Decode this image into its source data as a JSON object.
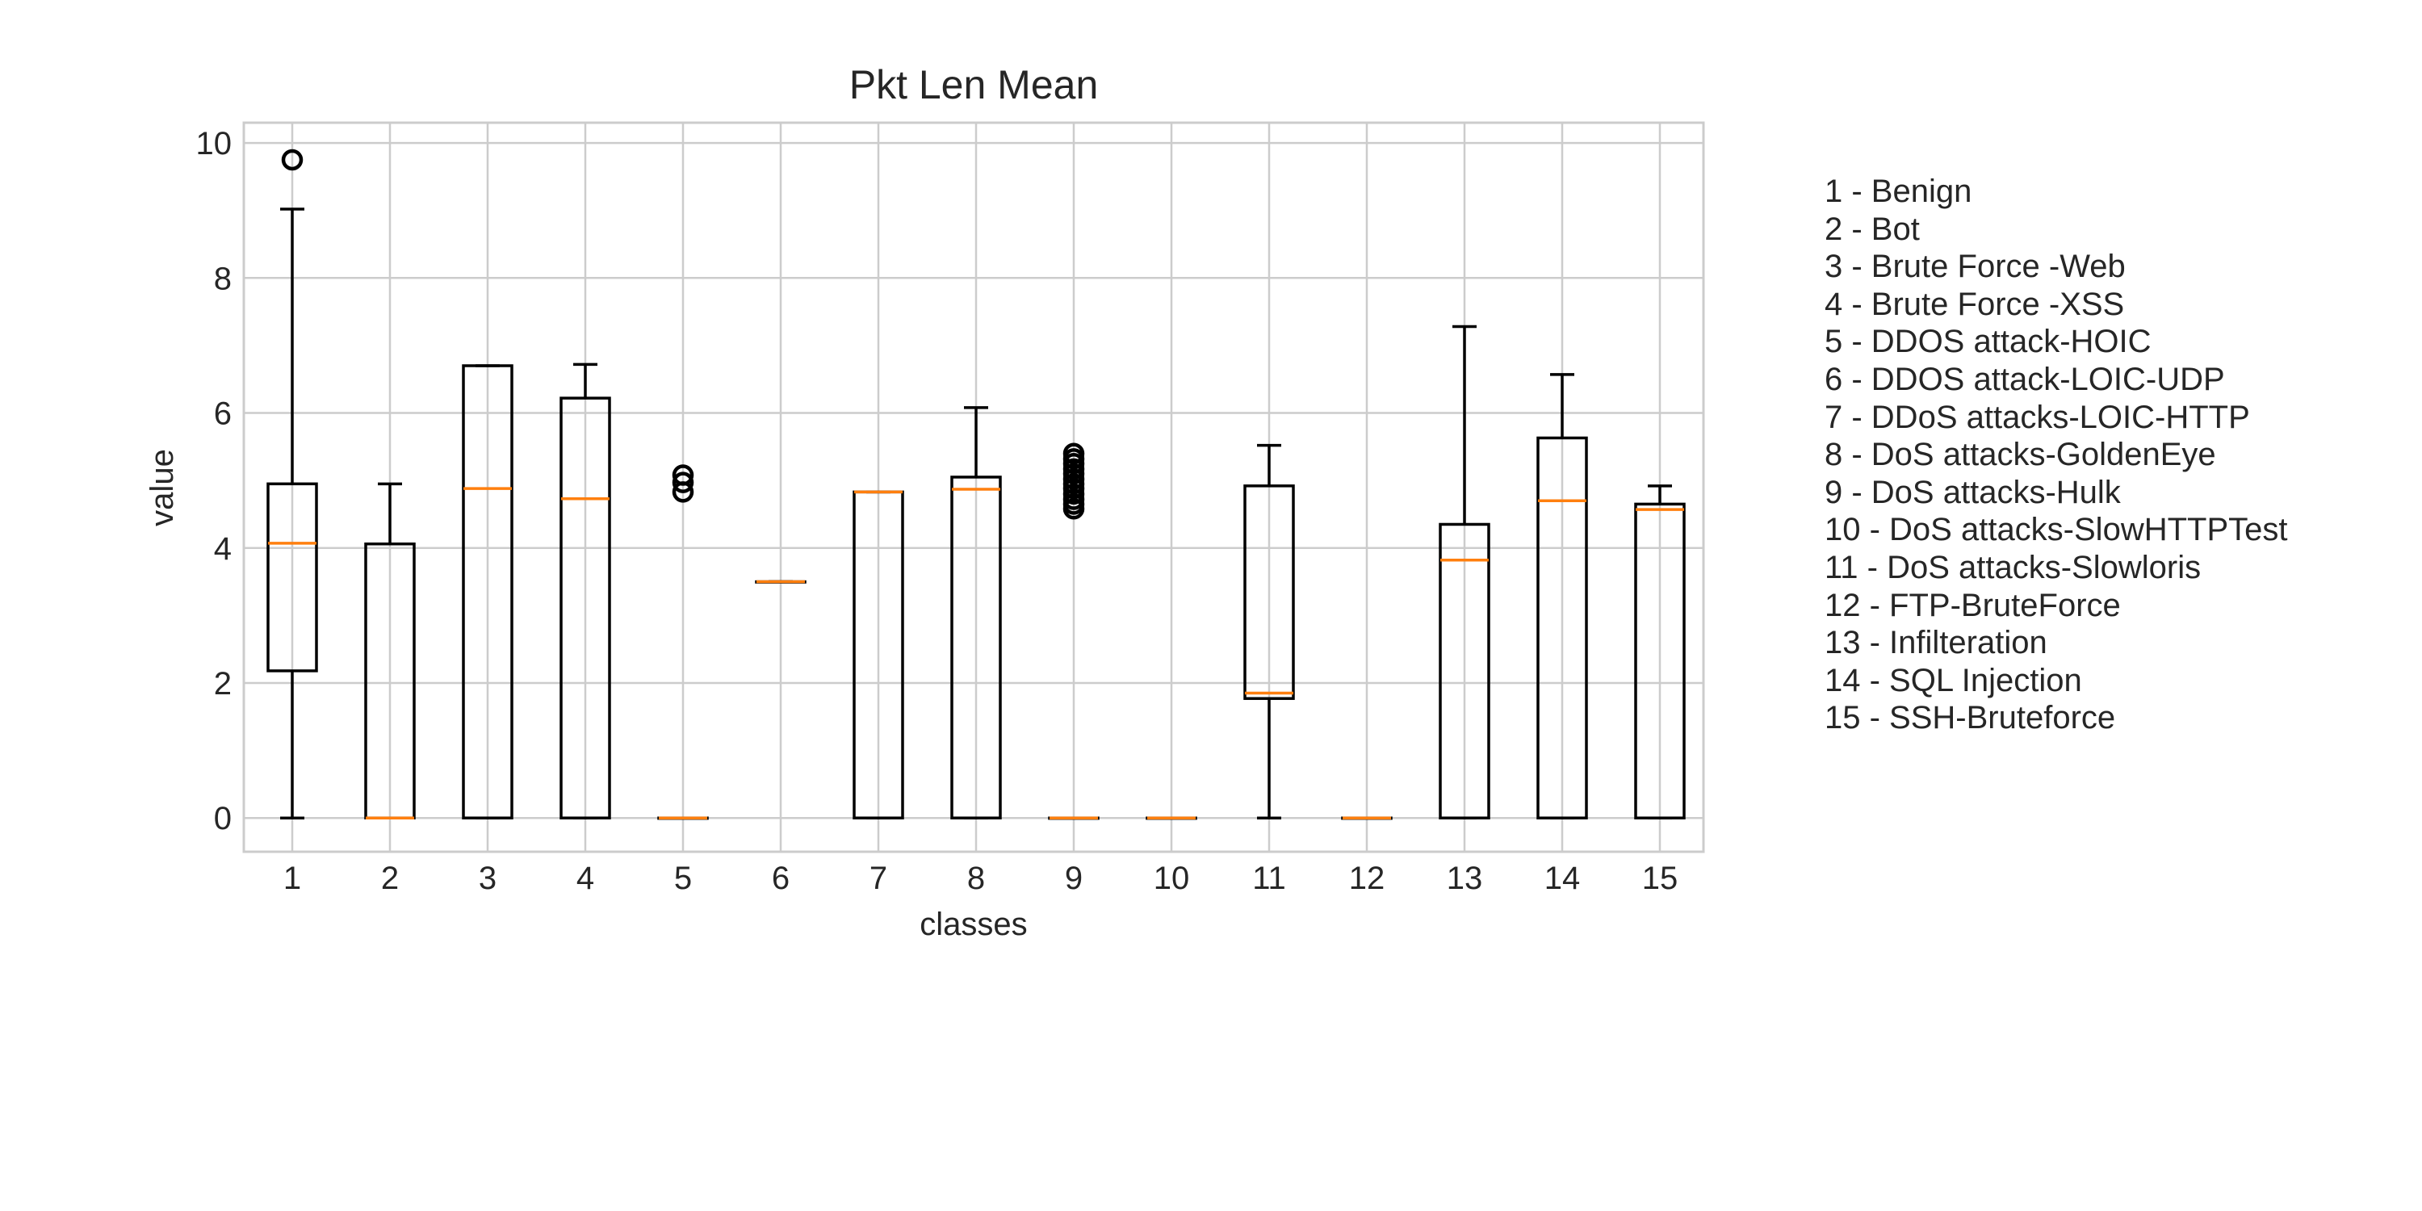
{
  "chart_data": {
    "type": "box",
    "title": "Pkt Len Mean",
    "xlabel": "classes",
    "ylabel": "value",
    "ylim": [
      -0.5,
      10.3
    ],
    "yticks": [
      0,
      2,
      4,
      6,
      8,
      10
    ],
    "grid": true,
    "categories": [
      "1",
      "2",
      "3",
      "4",
      "5",
      "6",
      "7",
      "8",
      "9",
      "10",
      "11",
      "12",
      "13",
      "14",
      "15"
    ],
    "boxes": [
      {
        "class": "1",
        "whisker_low": 0,
        "q1": 2.18,
        "median": 4.07,
        "q3": 4.95,
        "whisker_high": 9.02,
        "outliers": [
          9.75
        ]
      },
      {
        "class": "2",
        "whisker_low": 0,
        "q1": 0,
        "median": 0,
        "q3": 4.06,
        "whisker_high": 4.95,
        "outliers": []
      },
      {
        "class": "3",
        "whisker_low": 0,
        "q1": 0,
        "median": 4.88,
        "q3": 6.7,
        "whisker_high": 6.7,
        "outliers": []
      },
      {
        "class": "4",
        "whisker_low": 0,
        "q1": 0,
        "median": 4.73,
        "q3": 6.22,
        "whisker_high": 6.72,
        "outliers": []
      },
      {
        "class": "5",
        "whisker_low": 0,
        "q1": 0,
        "median": 0,
        "q3": 0,
        "whisker_high": 0,
        "outliers": [
          4.83,
          4.97,
          5.08
        ]
      },
      {
        "class": "6",
        "whisker_low": 3.5,
        "q1": 3.5,
        "median": 3.5,
        "q3": 3.5,
        "whisker_high": 3.5,
        "outliers": []
      },
      {
        "class": "7",
        "whisker_low": 0,
        "q1": 0,
        "median": 4.83,
        "q3": 4.83,
        "whisker_high": 4.83,
        "outliers": []
      },
      {
        "class": "8",
        "whisker_low": 0,
        "q1": 0,
        "median": 4.87,
        "q3": 5.05,
        "whisker_high": 6.08,
        "outliers": []
      },
      {
        "class": "9",
        "whisker_low": 0,
        "q1": 0,
        "median": 0,
        "q3": 0,
        "whisker_high": 0,
        "outliers": [
          4.58,
          4.65,
          4.72,
          4.8,
          4.88,
          4.95,
          5.02,
          5.1,
          5.17,
          5.25,
          5.32,
          5.4
        ]
      },
      {
        "class": "10",
        "whisker_low": 0,
        "q1": 0,
        "median": 0,
        "q3": 0,
        "whisker_high": 0,
        "outliers": []
      },
      {
        "class": "11",
        "whisker_low": 0,
        "q1": 1.77,
        "median": 1.85,
        "q3": 4.92,
        "whisker_high": 5.52,
        "outliers": []
      },
      {
        "class": "12",
        "whisker_low": 0,
        "q1": 0,
        "median": 0,
        "q3": 0,
        "whisker_high": 0,
        "outliers": []
      },
      {
        "class": "13",
        "whisker_low": 0,
        "q1": 0,
        "median": 3.82,
        "q3": 4.35,
        "whisker_high": 7.28,
        "outliers": []
      },
      {
        "class": "14",
        "whisker_low": 0,
        "q1": 0,
        "median": 4.7,
        "q3": 5.63,
        "whisker_high": 6.57,
        "outliers": []
      },
      {
        "class": "15",
        "whisker_low": 0,
        "q1": 0,
        "median": 4.57,
        "q3": 4.65,
        "whisker_high": 4.92,
        "outliers": []
      }
    ],
    "legend_position": "right",
    "legend": [
      "1 - Benign",
      "2 - Bot",
      "3 - Brute Force -Web",
      "4 - Brute Force -XSS",
      "5 - DDOS attack-HOIC",
      "6 - DDOS attack-LOIC-UDP",
      "7 - DDoS attacks-LOIC-HTTP",
      "8 - DoS attacks-GoldenEye",
      "9 - DoS attacks-Hulk",
      "10 - DoS attacks-SlowHTTPTest",
      "11 - DoS attacks-Slowloris",
      "12 - FTP-BruteForce",
      "13 - Infilteration",
      "14 - SQL Injection",
      "15 - SSH-Bruteforce"
    ],
    "colors": {
      "box": "#000000",
      "median": "#ff7f0e",
      "grid": "#cccccc",
      "frame": "#cccccc",
      "text": "#262626"
    }
  }
}
